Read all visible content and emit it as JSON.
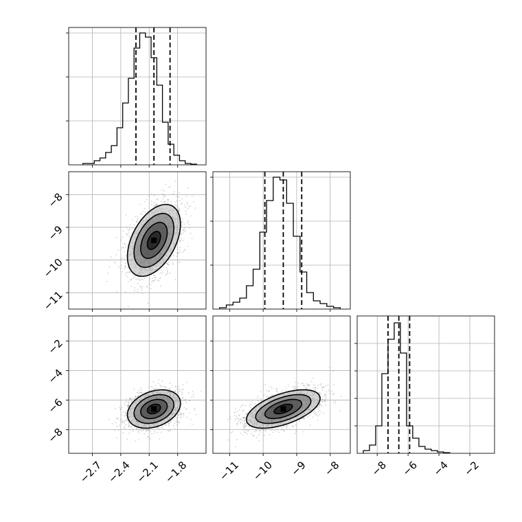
{
  "figure": {
    "background": "#ffffff",
    "frame_color": "#222222",
    "grid_color": "#b0b0b0",
    "ink_color": "#000000",
    "scatter_color": "#7f7f7f"
  },
  "chart_data": [
    {
      "id": "hist-p1",
      "type": "histogram",
      "title": "",
      "xlabel": "",
      "ylabel": "",
      "xlim": [
        -2.95,
        -1.5
      ],
      "ylim": [
        0,
        1.0
      ],
      "grid": true,
      "normalized": true,
      "bin_edges": [
        -2.8,
        -2.74,
        -2.68,
        -2.62,
        -2.56,
        -2.5,
        -2.44,
        -2.38,
        -2.32,
        -2.26,
        -2.2,
        -2.14,
        -2.08,
        -2.02,
        -1.96,
        -1.9,
        -1.84,
        -1.78,
        -1.72,
        -1.66,
        -1.6
      ],
      "values": [
        0.01,
        0.01,
        0.03,
        0.05,
        0.09,
        0.14,
        0.27,
        0.45,
        0.63,
        0.85,
        0.96,
        0.93,
        0.78,
        0.58,
        0.31,
        0.15,
        0.07,
        0.03,
        0.01,
        0.005
      ],
      "quantile_lines": [
        -2.24,
        -2.05,
        -1.88
      ],
      "xticks": [
        -2.7,
        -2.4,
        -2.1,
        -1.8
      ],
      "xtick_labels": [],
      "yticks": [
        0.32,
        0.64,
        0.96
      ],
      "ytick_labels": []
    },
    {
      "id": "hist-p2",
      "type": "histogram",
      "title": "",
      "xlabel": "",
      "ylabel": "",
      "xlim": [
        -11.5,
        -7.4
      ],
      "ylim": [
        0,
        1.0
      ],
      "grid": true,
      "normalized": true,
      "bin_edges": [
        -11.3,
        -11.1,
        -10.9,
        -10.7,
        -10.5,
        -10.3,
        -10.1,
        -9.9,
        -9.7,
        -9.5,
        -9.3,
        -9.1,
        -8.9,
        -8.7,
        -8.5,
        -8.3,
        -8.1,
        -7.9,
        -7.7
      ],
      "values": [
        0.01,
        0.03,
        0.05,
        0.08,
        0.17,
        0.29,
        0.56,
        0.79,
        0.96,
        0.94,
        0.77,
        0.53,
        0.27,
        0.12,
        0.06,
        0.04,
        0.02,
        0.01
      ],
      "quantile_lines": [
        -9.95,
        -9.4,
        -8.85
      ],
      "xticks": [
        -11,
        -10,
        -9,
        -8
      ],
      "xtick_labels": [],
      "yticks": [
        0.32,
        0.64,
        0.96
      ],
      "ytick_labels": []
    },
    {
      "id": "hist-p3",
      "type": "histogram",
      "title": "",
      "xlabel": "",
      "ylabel": "",
      "xlim": [
        -9.3,
        -0.4
      ],
      "ylim": [
        0,
        1.0
      ],
      "grid": true,
      "normalized": true,
      "bin_edges": [
        -8.9,
        -8.5,
        -8.1,
        -7.7,
        -7.3,
        -6.9,
        -6.5,
        -6.1,
        -5.7,
        -5.3,
        -4.9,
        -4.5,
        -4.1,
        -3.7,
        -3.3
      ],
      "values": [
        0.02,
        0.06,
        0.2,
        0.58,
        0.83,
        0.95,
        0.73,
        0.2,
        0.11,
        0.05,
        0.03,
        0.02,
        0.01,
        0.005
      ],
      "quantile_lines": [
        -7.3,
        -6.6,
        -5.9
      ],
      "xticks": [
        -8,
        -6,
        -4,
        -2
      ],
      "xtick_labels": [
        "−8",
        "−6",
        "−4",
        "−2"
      ],
      "yticks": [
        0.2,
        0.4,
        0.6,
        0.8
      ],
      "ytick_labels": []
    },
    {
      "id": "corner-p1-p2",
      "type": "scatter",
      "title": "",
      "xlabel": "",
      "ylabel": "",
      "xlim": [
        -2.95,
        -1.5
      ],
      "ylim": [
        -11.5,
        -7.3
      ],
      "grid": true,
      "center": [
        -2.05,
        -9.4
      ],
      "spread": [
        0.14,
        0.55
      ],
      "correlation": 0.45,
      "num_points": 2200,
      "contour_levels_sigma": [
        0.5,
        1.0,
        1.5,
        2.0
      ],
      "contour_fill_colors": [
        "#000000",
        "#333333",
        "#6e6e6e",
        "#b4b4b4"
      ],
      "xticks": [
        -2.7,
        -2.4,
        -2.1,
        -1.8
      ],
      "xtick_labels": [],
      "yticks": [
        -8,
        -9,
        -10,
        -11
      ],
      "ytick_labels": [
        "−8",
        "−9",
        "−10",
        "−11"
      ]
    },
    {
      "id": "corner-p1-p3",
      "type": "scatter",
      "title": "",
      "xlabel": "",
      "ylabel": "",
      "xlim": [
        -2.95,
        -1.5
      ],
      "ylim": [
        -9.6,
        -0.3
      ],
      "grid": true,
      "center": [
        -2.05,
        -6.6
      ],
      "spread": [
        0.14,
        0.65
      ],
      "correlation": 0.3,
      "num_points": 2200,
      "contour_levels_sigma": [
        0.5,
        1.0,
        1.5,
        2.0
      ],
      "contour_fill_colors": [
        "#000000",
        "#333333",
        "#6e6e6e",
        "#b4b4b4"
      ],
      "xticks": [
        -2.7,
        -2.4,
        -2.1,
        -1.8
      ],
      "xtick_labels": [
        "−2.7",
        "−2.4",
        "−2.1",
        "−1.8"
      ],
      "yticks": [
        -2,
        -4,
        -6,
        -8
      ],
      "ytick_labels": [
        "−2",
        "−4",
        "−6",
        "−8"
      ]
    },
    {
      "id": "corner-p2-p3",
      "type": "scatter",
      "title": "",
      "xlabel": "",
      "ylabel": "",
      "xlim": [
        -11.5,
        -7.4
      ],
      "ylim": [
        -9.6,
        -0.3
      ],
      "grid": true,
      "center": [
        -9.4,
        -6.6
      ],
      "spread": [
        0.55,
        0.65
      ],
      "correlation": 0.55,
      "num_points": 2200,
      "contour_levels_sigma": [
        0.5,
        1.0,
        1.5,
        2.0
      ],
      "contour_fill_colors": [
        "#000000",
        "#333333",
        "#6e6e6e",
        "#b4b4b4"
      ],
      "xticks": [
        -11,
        -10,
        -9,
        -8
      ],
      "xtick_labels": [
        "−11",
        "−10",
        "−9",
        "−8"
      ],
      "yticks": [
        -2,
        -4,
        -6,
        -8
      ],
      "ytick_labels": []
    }
  ]
}
